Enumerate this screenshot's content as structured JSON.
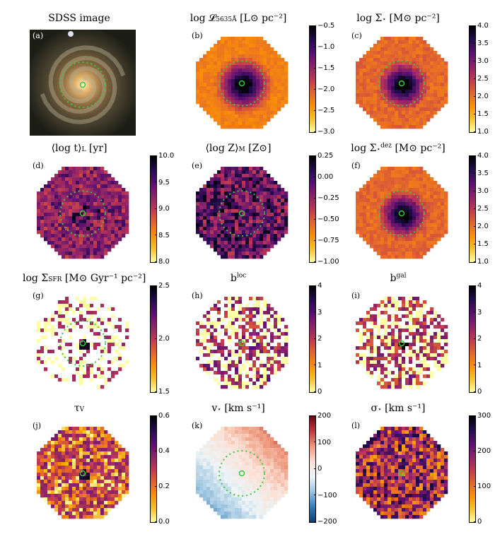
{
  "colors": {
    "inferno": [
      "#fcffa4",
      "#f4c22d",
      "#f98e09",
      "#e1642f",
      "#bc3754",
      "#89226a",
      "#56106e",
      "#210c4a",
      "#000004"
    ],
    "rdbu": [
      "#0b3f6e",
      "#3a7ab6",
      "#9ac4e0",
      "#eef4f7",
      "#fbe0d4",
      "#ee9a7e",
      "#c13b3c",
      "#6a0314"
    ],
    "guide_circle": "#3cc83c"
  },
  "panels": [
    {
      "id": "a",
      "label": "(a)",
      "title_main": "SDSS image",
      "title_sub": "",
      "title_unit": "",
      "kind": "sdss",
      "ticks": []
    },
    {
      "id": "b",
      "label": "(b)",
      "title_main": "log 𝓛",
      "title_sub": "5635Å",
      "title_unit": " [L⊙ pc⁻²]",
      "kind": "lum",
      "cmap": "inferno_r",
      "ticks": [
        "−0.5",
        "−1.0",
        "−1.5",
        "−2.0",
        "−2.5",
        "−3.0"
      ]
    },
    {
      "id": "c",
      "label": "(c)",
      "title_main": "log Σ",
      "title_sub": "⋆",
      "title_unit": " [M⊙ pc⁻²]",
      "kind": "mass",
      "cmap": "inferno_r",
      "ticks": [
        "4.0",
        "3.5",
        "3.0",
        "2.5",
        "2.0",
        "1.5",
        "1.0"
      ]
    },
    {
      "id": "d",
      "label": "(d)",
      "title_main": "⟨log t⟩",
      "title_sub": "L",
      "title_unit": " [yr]",
      "kind": "age",
      "cmap": "inferno_r",
      "ticks": [
        "10.0",
        "9.5",
        "9.0",
        "8.5",
        "8.0"
      ]
    },
    {
      "id": "e",
      "label": "(e)",
      "title_main": "⟨log Z⟩",
      "title_sub": "M",
      "title_unit": " [Z⊙]",
      "kind": "metal",
      "cmap": "inferno_r",
      "ticks": [
        "0.25",
        "0.00",
        "−0.25",
        "−0.50",
        "−0.75",
        "−1.00"
      ]
    },
    {
      "id": "f",
      "label": "(f)",
      "title_main": "log Σ",
      "title_sub": "⋆",
      "title_sup": "dez",
      "title_unit": " [M⊙ pc⁻²]",
      "kind": "mass",
      "cmap": "inferno_r",
      "ticks": [
        "4.0",
        "3.5",
        "3.0",
        "2.5",
        "2.0",
        "1.5",
        "1.0"
      ]
    },
    {
      "id": "g",
      "label": "(g)",
      "title_main": "log Σ",
      "title_sub": "SFR",
      "title_unit": " [M⊙ Gyr⁻¹ pc⁻²]",
      "kind": "sfr",
      "cmap": "inferno_r",
      "ticks": [
        "2.5",
        "2.0",
        "1.5"
      ]
    },
    {
      "id": "h",
      "label": "(h)",
      "title_main": "b",
      "title_sub": "",
      "title_sup": "loc",
      "title_unit": "",
      "kind": "bloc",
      "cmap": "inferno_r",
      "ticks": [
        "4",
        "3",
        "2",
        "1",
        "0"
      ]
    },
    {
      "id": "i",
      "label": "(i)",
      "title_main": "b",
      "title_sub": "",
      "title_sup": "gal",
      "title_unit": "",
      "kind": "bgal",
      "cmap": "inferno_r",
      "ticks": [
        "4",
        "3",
        "2",
        "1",
        "0"
      ]
    },
    {
      "id": "j",
      "label": "(j)",
      "title_main": "τ",
      "title_sub": "V",
      "title_unit": "",
      "kind": "tau",
      "cmap": "inferno_r",
      "ticks": [
        "0.6",
        "0.4",
        "0.2",
        "0.0"
      ]
    },
    {
      "id": "k",
      "label": "(k)",
      "title_main": "v",
      "title_sub": "⋆",
      "title_unit": " [km s⁻¹]",
      "kind": "vel",
      "cmap": "rdbu",
      "ticks": [
        "200",
        "100",
        "0",
        "−100",
        "−200"
      ]
    },
    {
      "id": "l",
      "label": "(l)",
      "title_main": "σ",
      "title_sub": "⋆",
      "title_unit": " [km s⁻¹]",
      "kind": "sigma",
      "cmap": "inferno_r",
      "ticks": [
        "300",
        "200",
        "100",
        "0"
      ]
    }
  ]
}
